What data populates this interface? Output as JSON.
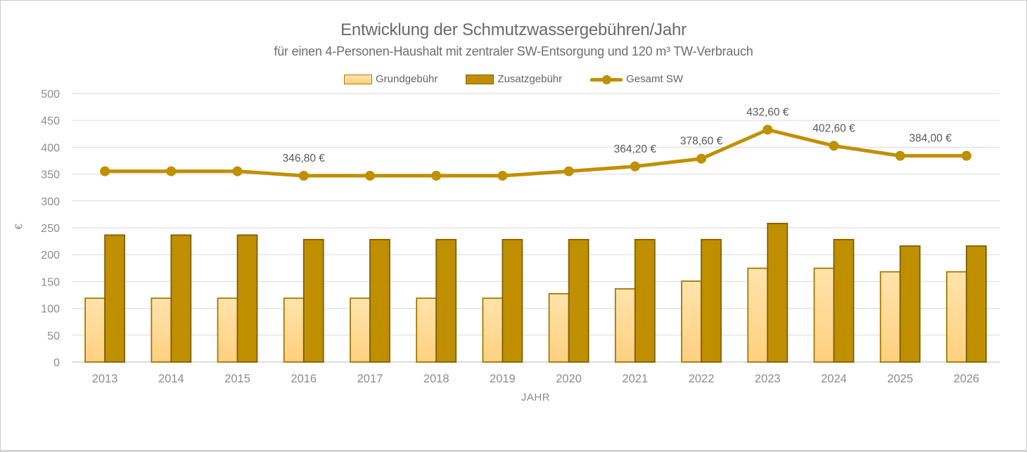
{
  "chart_data": {
    "type": "bar+line",
    "title": "Entwicklung der Schmutzwassergebühren/Jahr",
    "subtitle": "für einen 4-Personen-Haushalt mit zentraler SW-Entsorgung und 120 m³ TW-Verbrauch",
    "xlabel": "JAHR",
    "ylabel": "€",
    "ylim": [
      0,
      500
    ],
    "yticks": [
      0,
      50,
      100,
      150,
      200,
      250,
      300,
      350,
      400,
      450,
      500
    ],
    "grid": true,
    "legend_position": "top",
    "categories": [
      "2013",
      "2014",
      "2015",
      "2016",
      "2017",
      "2018",
      "2019",
      "2020",
      "2021",
      "2022",
      "2023",
      "2024",
      "2025",
      "2026"
    ],
    "series": [
      {
        "name": "Grundgebühr",
        "type": "bar",
        "fill_top": "#ffe3ac",
        "fill_bottom": "#ffd080",
        "border": "#a07a00",
        "values": [
          118.8,
          118.8,
          118.8,
          118.8,
          118.8,
          118.8,
          118.8,
          127.2,
          136.2,
          150.6,
          174.6,
          174.6,
          168.0,
          168.0
        ]
      },
      {
        "name": "Zusatzgebühr",
        "type": "bar",
        "fill": "#bf8f00",
        "border": "#7f6000",
        "values": [
          236.4,
          236.4,
          236.4,
          228.0,
          228.0,
          228.0,
          228.0,
          228.0,
          228.0,
          228.0,
          258.0,
          228.0,
          216.0,
          216.0
        ]
      },
      {
        "name": "Gesamt SW",
        "type": "line",
        "color": "#bf9000",
        "values": [
          355.2,
          355.2,
          355.2,
          346.8,
          346.8,
          346.8,
          346.8,
          355.2,
          364.2,
          378.6,
          432.6,
          402.6,
          384.0,
          384.0
        ]
      }
    ],
    "data_labels": [
      {
        "index": 3,
        "text": "346,80 €",
        "dx": 0
      },
      {
        "index": 8,
        "text": "364,20 €",
        "dx": 0
      },
      {
        "index": 9,
        "text": "378,60 €",
        "dx": 0
      },
      {
        "index": 10,
        "text": "432,60 €",
        "dx": 0
      },
      {
        "index": 11,
        "text": "402,60 €",
        "dx": 0
      },
      {
        "index": 12,
        "text": "384,00 €",
        "dx": 43
      }
    ],
    "colors": {
      "gridline": "#d9d9d9",
      "axis_line": "#d2d2d2",
      "tick_text": "#8c8c8c",
      "label_text": "#595959",
      "title_text": "#6a6a6a"
    }
  }
}
